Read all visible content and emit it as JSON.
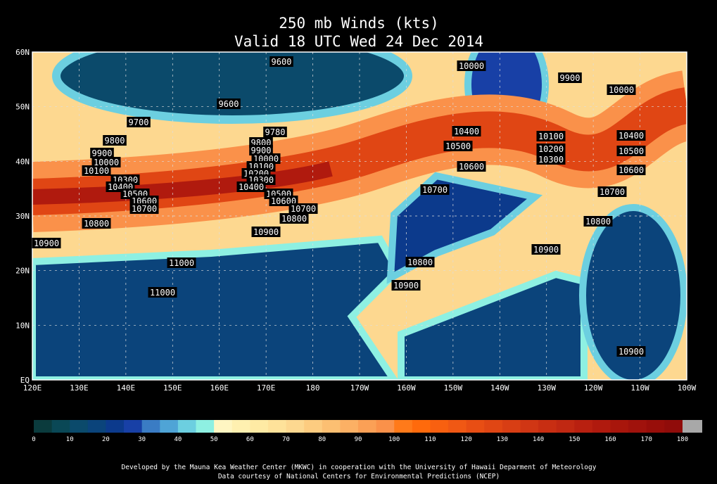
{
  "header": {
    "title": "250 mb Winds (kts)",
    "subtitle": "Valid 18 UTC Wed 24 Dec 2014"
  },
  "map": {
    "lat_labels": [
      "60N",
      "50N",
      "40N",
      "30N",
      "20N",
      "10N",
      "EQ"
    ],
    "lon_labels": [
      "120E",
      "130E",
      "140E",
      "150E",
      "160E",
      "170E",
      "180",
      "170W",
      "160W",
      "150W",
      "140W",
      "130W",
      "120W",
      "110W",
      "100W"
    ],
    "contour_labels": [
      "9600",
      "10000",
      "9900",
      "10000",
      "9600",
      "9700",
      "9780",
      "9800",
      "9800",
      "10400",
      "10100",
      "10400",
      "9900",
      "9900",
      "10500",
      "10200",
      "10500",
      "10000",
      "10000",
      "10300",
      "10600",
      "10600",
      "10100",
      "10100",
      "10200",
      "10300",
      "10300",
      "10400",
      "10400",
      "10700",
      "10700",
      "10500",
      "10500",
      "10600",
      "10600",
      "10700",
      "10700",
      "10800",
      "10800",
      "10800",
      "10900",
      "10900",
      "10900",
      "11000",
      "10800",
      "10900",
      "11000",
      "10900"
    ]
  },
  "colorbar": {
    "labels": [
      0,
      10,
      20,
      30,
      40,
      50,
      60,
      70,
      80,
      90,
      100,
      110,
      120,
      130,
      140,
      150,
      160,
      170,
      180
    ],
    "colors": [
      "#0b3b3d",
      "#0a4856",
      "#0b4a6b",
      "#0b447b",
      "#0c3a8c",
      "#1840a6",
      "#3a7cc4",
      "#4fa4d6",
      "#6ccfe0",
      "#8ef0e2",
      "#fff6c2",
      "#fff0b0",
      "#feeaa4",
      "#fee29a",
      "#fdd890",
      "#fdcc80",
      "#fcbf72",
      "#fcb064",
      "#fba056",
      "#fa914a",
      "#ff7a1a",
      "#ff6a0c",
      "#f86010",
      "#f05814",
      "#e84e14",
      "#e04614",
      "#d83e14",
      "#d03614",
      "#c82e12",
      "#c02812",
      "#b82010",
      "#b01a0e",
      "#a8160c",
      "#a0120c",
      "#980e0a",
      "#900c0a"
    ],
    "over_color": "#a8a8a8"
  },
  "footer": {
    "line1": "Developed by the Mauna Kea Weather Center (MKWC) in cooperation with the University of Hawaii Deparment of Meteorology",
    "line2": "Data courtesy of National Centers for Environmental Predictions (NCEP)"
  }
}
